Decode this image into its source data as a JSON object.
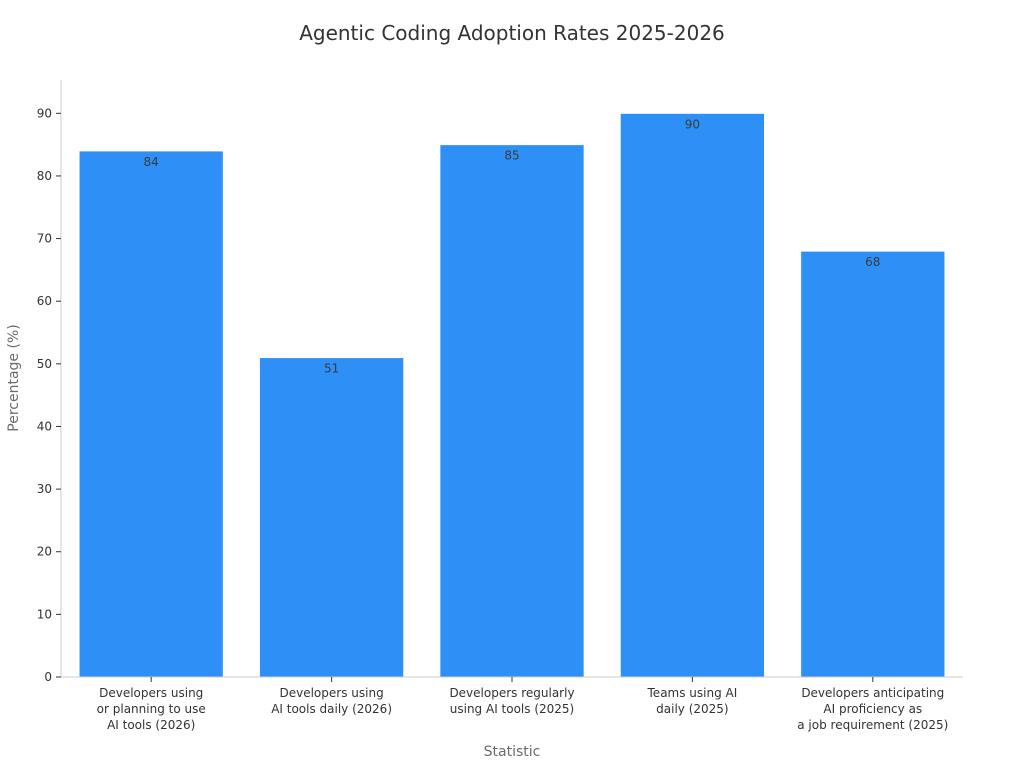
{
  "chart_data": {
    "type": "bar",
    "title": "Agentic Coding Adoption Rates 2025-2026",
    "xlabel": "Statistic",
    "ylabel": "Percentage (%)",
    "categories": [
      [
        "Developers using",
        "or planning to use",
        "AI tools (2026)"
      ],
      [
        "Developers using",
        "AI tools daily (2026)"
      ],
      [
        "Developers regularly",
        "using AI tools (2025)"
      ],
      [
        "Teams using AI",
        "daily (2025)"
      ],
      [
        "Developers anticipating",
        "AI proficiency as",
        "a job requirement (2025)"
      ]
    ],
    "values": [
      84,
      51,
      85,
      90,
      68
    ],
    "ylim": [
      0,
      95
    ],
    "yticks": [
      0,
      10,
      20,
      30,
      40,
      50,
      60,
      70,
      80,
      90
    ],
    "grid": false,
    "bar_color": "#2e90f7",
    "axis_color": "#cccccc",
    "tick_color": "#333333"
  }
}
